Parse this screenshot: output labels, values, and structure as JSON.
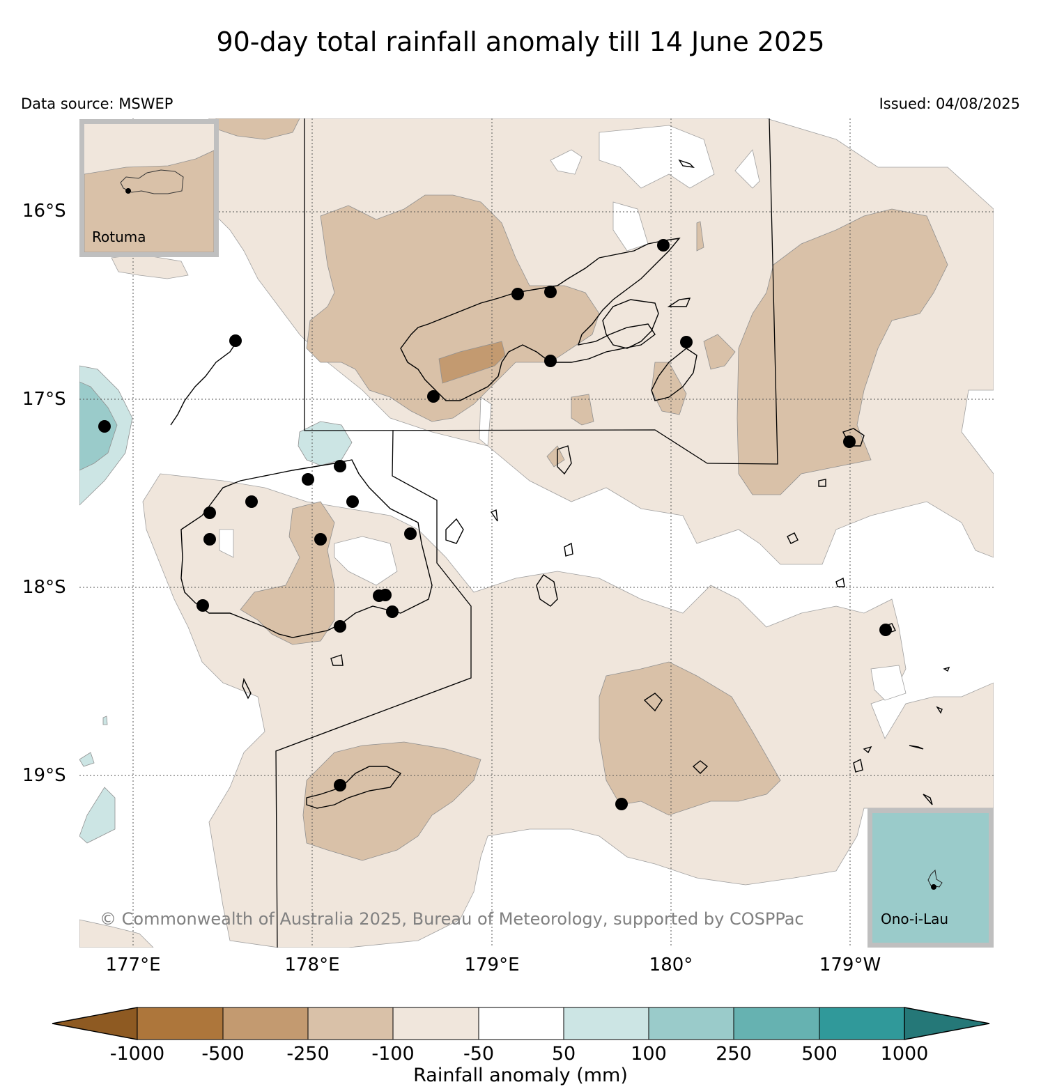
{
  "title": "90-day total rainfall anomaly till 14 June 2025",
  "data_source": "Data source: MSWEP",
  "issued": "Issued: 04/08/2025",
  "copyright": "© Commonwealth of Australia 2025, Bureau of Meteorology, supported by COSPPac",
  "latitude_labels": [
    "16°S",
    "17°S",
    "18°S",
    "19°S"
  ],
  "longitude_labels": [
    "177°E",
    "178°E",
    "179°E",
    "180°",
    "179°W"
  ],
  "insets": {
    "rotuma": {
      "label": "Rotuma"
    },
    "ono_i_lau": {
      "label": "Ono-i-Lau"
    }
  },
  "colorbar": {
    "label": "Rainfall anomaly (mm)",
    "ticks": [
      "-1000",
      "-500",
      "-250",
      "-100",
      "-50",
      "50",
      "100",
      "250",
      "500",
      "1000"
    ],
    "colors": [
      "#8e5a22",
      "#ad763b",
      "#c39a70",
      "#d9c1a8",
      "#f0e6dc",
      "#ffffff",
      "#cce5e4",
      "#9acbca",
      "#66b2b1",
      "#30999a",
      "#257878"
    ]
  },
  "map_colors": {
    "minus_50_to_100": "#f0e6dc",
    "minus_100_to_250": "#d9c1a8",
    "minus_250_to_500": "#c39a70",
    "plus_50_to_100": "#cce5e4",
    "plus_100_to_250": "#9acbca"
  }
}
